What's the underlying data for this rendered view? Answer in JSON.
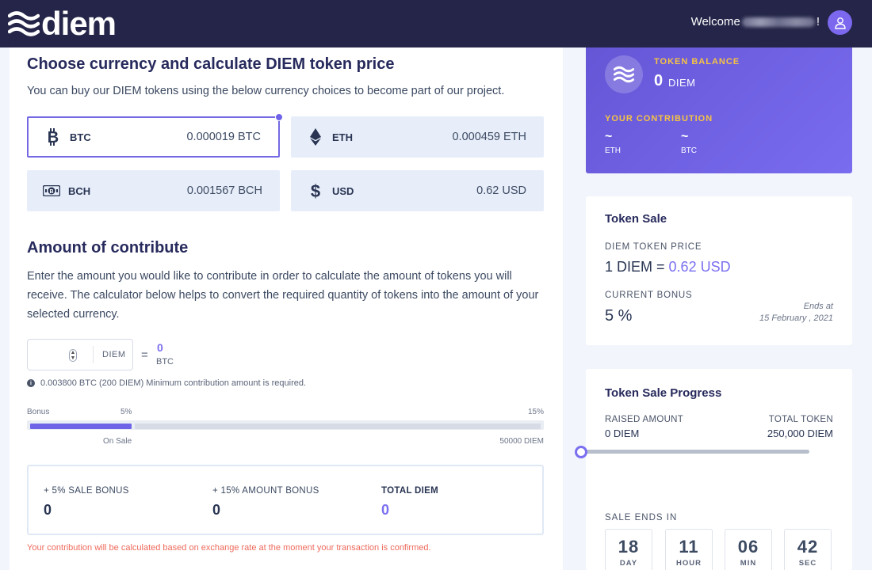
{
  "header": {
    "brand": "diem",
    "welcome_prefix": "Welcome",
    "welcome_suffix": "!"
  },
  "currency_section": {
    "title": "Choose currency and calculate DIEM token price",
    "description": "You can buy our DIEM tokens using the below currency choices to become part of our project.",
    "options": [
      {
        "code": "BTC",
        "value": "0.000019 BTC",
        "icon": "bitcoin-icon",
        "selected": true
      },
      {
        "code": "ETH",
        "value": "0.000459 ETH",
        "icon": "ethereum-icon",
        "selected": false
      },
      {
        "code": "BCH",
        "value": "0.001567 BCH",
        "icon": "bitcoin-cash-icon",
        "selected": false
      },
      {
        "code": "USD",
        "value": "0.62 USD",
        "icon": "dollar-icon",
        "selected": false
      }
    ]
  },
  "contribute": {
    "title": "Amount of contribute",
    "description": "Enter the amount you would like to contribute in order to calculate the amount of tokens you will receive. The calculator below helps to convert the required quantity of tokens into the amount of your selected currency.",
    "input_value": "",
    "input_unit": "DIEM",
    "equals": "=",
    "result_value": "0",
    "result_unit": "BTC",
    "min_note": "0.003800 BTC (200 DIEM) Minimum contribution amount is required.",
    "bonus_label": "Bonus",
    "bonus_low": "5%",
    "bonus_high": "15%",
    "on_sale_label": "On Sale",
    "amount_label": "50000 DIEM",
    "bonus_bar_fill_fraction": 0.2,
    "summary": {
      "sale_bonus_label": "+ 5% SALE BONUS",
      "sale_bonus_value": "0",
      "amount_bonus_label": "+ 15% AMOUNT BONUS",
      "amount_bonus_value": "0",
      "total_label": "TOTAL DIEM",
      "total_value": "0"
    },
    "warning": "Your contribution will be calculated based on exchange rate at the moment your transaction is confirmed."
  },
  "balance": {
    "label": "TOKEN BALANCE",
    "value": "0",
    "unit": "DIEM",
    "contribution_label": "YOUR CONTRIBUTION",
    "contributions": [
      {
        "value": "~",
        "unit": "ETH"
      },
      {
        "value": "~",
        "unit": "BTC"
      }
    ]
  },
  "token_sale": {
    "title": "Token Sale",
    "price_label": "DIEM TOKEN PRICE",
    "price_prefix": "1 DIEM =",
    "price_value": "0.62 USD",
    "bonus_label": "CURRENT BONUS",
    "bonus_value": "5 %",
    "ends_label": "Ends at",
    "ends_date": "15 February , 2021"
  },
  "progress": {
    "title": "Token Sale Progress",
    "raised_label": "RAISED AMOUNT",
    "raised_value": "0 DIEM",
    "total_label": "TOTAL TOKEN",
    "total_value": "250,000 DIEM",
    "raised_fraction": 0,
    "ends_label": "SALE ENDS IN",
    "countdown": [
      {
        "value": "18",
        "unit": "DAY"
      },
      {
        "value": "11",
        "unit": "HOUR"
      },
      {
        "value": "06",
        "unit": "MIN"
      },
      {
        "value": "42",
        "unit": "SEC"
      }
    ]
  },
  "colors": {
    "topbar": "#242548",
    "accent": "#7569e3",
    "gold": "#f6c343",
    "warning": "#ef6a5c"
  }
}
